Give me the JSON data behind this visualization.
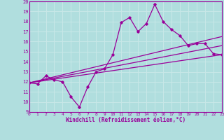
{
  "xlabel": "Windchill (Refroidissement éolien,°C)",
  "xlim": [
    0,
    23
  ],
  "ylim": [
    9,
    20
  ],
  "xticks": [
    0,
    1,
    2,
    3,
    4,
    5,
    6,
    7,
    8,
    9,
    10,
    11,
    12,
    13,
    14,
    15,
    16,
    17,
    18,
    19,
    20,
    21,
    22,
    23
  ],
  "yticks": [
    9,
    10,
    11,
    12,
    13,
    14,
    15,
    16,
    17,
    18,
    19,
    20
  ],
  "bg_color": "#b0dede",
  "line_color": "#990099",
  "grid_color": "#c8e8e8",
  "line1_x": [
    0,
    1,
    2,
    3,
    4,
    5,
    6,
    7,
    8,
    9,
    10,
    11,
    12,
    13,
    14,
    15,
    16,
    17,
    18,
    19,
    20,
    21,
    22,
    23
  ],
  "line1_y": [
    11.9,
    11.8,
    12.6,
    12.2,
    12.0,
    10.5,
    9.5,
    11.5,
    13.0,
    13.3,
    14.7,
    17.9,
    18.4,
    17.0,
    17.8,
    19.7,
    18.0,
    17.2,
    16.6,
    15.6,
    15.8,
    15.8,
    14.8,
    14.7
  ],
  "trend1_x": [
    0,
    23
  ],
  "trend1_y": [
    11.9,
    14.7
  ],
  "trend2_x": [
    0,
    23
  ],
  "trend2_y": [
    11.9,
    15.6
  ],
  "trend3_x": [
    0,
    23
  ],
  "trend3_y": [
    11.9,
    16.5
  ]
}
